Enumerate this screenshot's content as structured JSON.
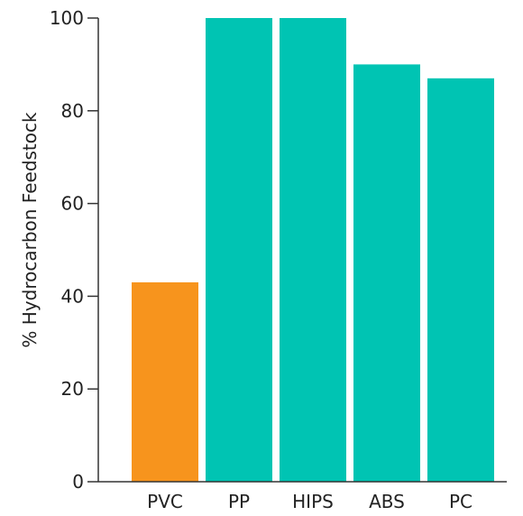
{
  "chart_data": {
    "type": "bar",
    "title": "",
    "xlabel": "",
    "ylabel": "% Hydrocarbon Feedstock",
    "categories": [
      "PVC",
      "PP",
      "HIPS",
      "ABS",
      "PC"
    ],
    "values": [
      43,
      100,
      100,
      90,
      87
    ],
    "bar_colors": [
      "#F7941D",
      "#00C4B3",
      "#00C4B3",
      "#00C4B3",
      "#00C4B3"
    ],
    "ylim": [
      0,
      100
    ],
    "yticks": [
      0,
      20,
      40,
      60,
      80,
      100
    ],
    "grid": false,
    "legend": "none",
    "axis_color": "#333333"
  }
}
